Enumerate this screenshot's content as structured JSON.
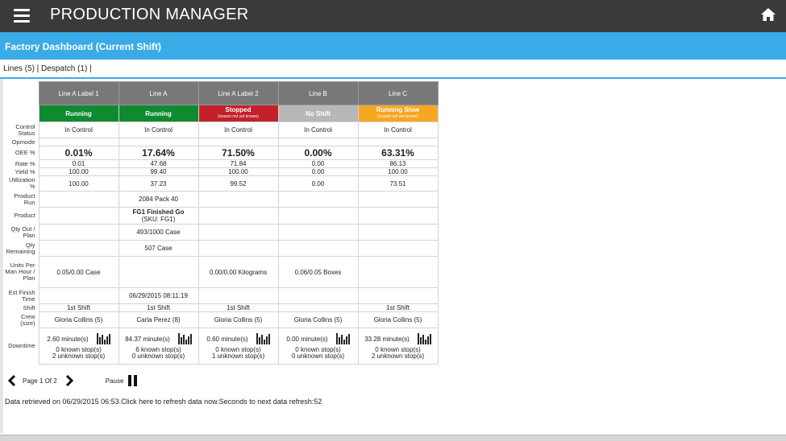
{
  "app": {
    "title": "PRODUCTION MANAGER"
  },
  "header": {
    "title": "Factory Dashboard (Current Shift)"
  },
  "tabs": {
    "text": "Lines (5) | Despatch (1) |"
  },
  "row_labels": {
    "control_status": "Control Status",
    "opmode": "Opmode",
    "oee": "OEE %",
    "rate": "Rate %",
    "yield": "Yield %",
    "utilization": "Utilization %",
    "product_run": "Product Run",
    "product": "Product",
    "qty_out_plan": "Qty Out / Plan",
    "qty_remaining": "Qty Remaining",
    "units_per_man_hour": "Units Per Man Hour / Plan",
    "est_finish": "Est Finish Time",
    "shift": "Shift",
    "crew": "Crew (size)",
    "downtime": "Downtime"
  },
  "lines": [
    {
      "name": "Line A Label 1",
      "status": "Running",
      "status_sub": "",
      "status_color": "#0f8a2f",
      "control_status": "In Control",
      "opmode": "",
      "oee": "0.01%",
      "rate": "0.01",
      "yield": "100.00",
      "utilization": "100.00",
      "product_run": "",
      "product_name": "",
      "product_sku": "",
      "qty_out_plan": "",
      "qty_remaining": "",
      "units_per_man_hour": "0.05/0.00 Case",
      "est_finish": "",
      "shift": "1st Shift",
      "crew": "Gloria Collins (5)",
      "downtime_minutes": "2.60 minute(s)",
      "known_stops": "0 known stop(s)",
      "unknown_stops": "2 unknown stop(s)"
    },
    {
      "name": "Line A",
      "status": "Running",
      "status_sub": "",
      "status_color": "#0f8a2f",
      "control_status": "In Control",
      "opmode": "",
      "oee": "17.64%",
      "rate": "47.68",
      "yield": "99.40",
      "utilization": "37.23",
      "product_run": "2084 Pack 40",
      "product_name": "FG1 Finished Go",
      "product_sku": "(SKU: FG1)",
      "qty_out_plan": "493/1000 Case",
      "qty_remaining": "507 Case",
      "units_per_man_hour": "",
      "est_finish": "06/29/2015 08:11:19",
      "shift": "1st Shift",
      "crew": "Carla Perez (8)",
      "downtime_minutes": "84.37 minute(s)",
      "known_stops": "6 known stop(s)",
      "unknown_stops": "0 unknown stop(s)"
    },
    {
      "name": "Line A Label 2",
      "status": "Stopped",
      "status_sub": "(reason not yet known)",
      "status_color": "#c3202a",
      "control_status": "In Control",
      "opmode": "",
      "oee": "71.50%",
      "rate": "71.84",
      "yield": "100.00",
      "utilization": "99.52",
      "product_run": "",
      "product_name": "",
      "product_sku": "",
      "qty_out_plan": "",
      "qty_remaining": "",
      "units_per_man_hour": "0.00/0.00 Kilograms",
      "est_finish": "",
      "shift": "1st Shift",
      "crew": "Gloria Collins (5)",
      "downtime_minutes": "0.60 minute(s)",
      "known_stops": "0 known stop(s)",
      "unknown_stops": "1 unknown stop(s)"
    },
    {
      "name": "Line B",
      "status": "No Shift",
      "status_sub": "",
      "status_color": "#b7b7b7",
      "control_status": "In Control",
      "opmode": "",
      "oee": "0.00%",
      "rate": "0.00",
      "yield": "0.00",
      "utilization": "0.00",
      "product_run": "",
      "product_name": "",
      "product_sku": "",
      "qty_out_plan": "",
      "qty_remaining": "",
      "units_per_man_hour": "0.06/0.05 Boxes",
      "est_finish": "",
      "shift": "",
      "crew": "Gloria Collins (5)",
      "downtime_minutes": "0.00 minute(s)",
      "known_stops": "0 known stop(s)",
      "unknown_stops": "0 unknown stop(s)"
    },
    {
      "name": "Line C",
      "status": "Running Slow",
      "status_sub": "(reason not yet known)",
      "status_color": "#f7a621",
      "control_status": "In Control",
      "opmode": "",
      "oee": "63.31%",
      "rate": "86.13",
      "yield": "100.00",
      "utilization": "73.51",
      "product_run": "",
      "product_name": "",
      "product_sku": "",
      "qty_out_plan": "",
      "qty_remaining": "",
      "units_per_man_hour": "",
      "est_finish": "",
      "shift": "1st Shift",
      "crew": "Gloria Collins (5)",
      "downtime_minutes": "33.28 minute(s)",
      "known_stops": "0 known stop(s)",
      "unknown_stops": "2 unknown stop(s)"
    }
  ],
  "pager": {
    "label": "Page 1 Of 2",
    "pause_label": "Pause"
  },
  "refresh": {
    "retrieved": "Data retrieved on 06/29/2015 06:53.",
    "click": "Click here to refresh data now.",
    "next": "Seconds to next data refresh:52"
  }
}
